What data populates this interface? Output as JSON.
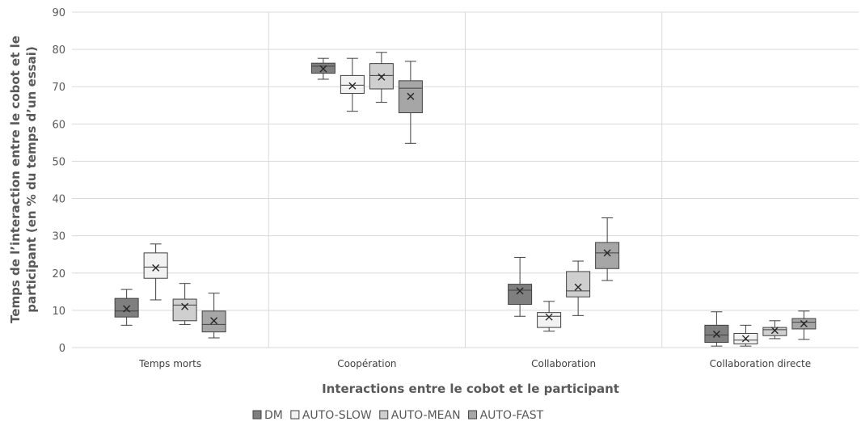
{
  "chart_data": {
    "type": "boxplot",
    "title": "",
    "xlabel": "Interactions entre le cobot et le participant",
    "ylabel_line1": "Temps de l’interaction entre le cobot et le",
    "ylabel_line2": "participant (en % du temps d’un essai)",
    "ylim": [
      0,
      90
    ],
    "yticks": [
      "0",
      "10",
      "20",
      "30",
      "40",
      "50",
      "60",
      "70",
      "80",
      "90"
    ],
    "grid": true,
    "legend_position": "bottom",
    "categories": [
      "Temps morts",
      "Coopération",
      "Collaboration",
      "Collaboration directe"
    ],
    "series": [
      {
        "name": "DM",
        "color": "#7f7f7f",
        "boxes": [
          {
            "min": 6,
            "q1": 8.2,
            "median": 9.8,
            "q3": 13.2,
            "max": 15.6,
            "mean": 10.4
          },
          {
            "min": 72,
            "q1": 73.6,
            "median": 75.5,
            "q3": 76.3,
            "max": 77.6,
            "mean": 74.8
          },
          {
            "min": 8.4,
            "q1": 11.6,
            "median": 15.4,
            "q3": 17,
            "max": 24.2,
            "mean": 15.2
          },
          {
            "min": 0.4,
            "q1": 1.4,
            "median": 3.4,
            "q3": 6,
            "max": 9.6,
            "mean": 3.6
          }
        ]
      },
      {
        "name": "AUTO-SLOW",
        "color": "#f2f2f2",
        "boxes": [
          {
            "min": 12.8,
            "q1": 18.6,
            "median": 21.6,
            "q3": 25.4,
            "max": 27.8,
            "mean": 21.4
          },
          {
            "min": 63.4,
            "q1": 68.2,
            "median": 70.4,
            "q3": 73,
            "max": 77.6,
            "mean": 70.2
          },
          {
            "min": 4.4,
            "q1": 5.4,
            "median": 8.4,
            "q3": 9.4,
            "max": 12.4,
            "mean": 8.2
          },
          {
            "min": 0.4,
            "q1": 1,
            "median": 2,
            "q3": 3.8,
            "max": 6,
            "mean": 2.4
          }
        ]
      },
      {
        "name": "AUTO-MEAN",
        "color": "#cfcfcf",
        "boxes": [
          {
            "min": 6.2,
            "q1": 7.2,
            "median": 11.4,
            "q3": 13,
            "max": 17.2,
            "mean": 11
          },
          {
            "min": 65.8,
            "q1": 69.4,
            "median": 73,
            "q3": 76.2,
            "max": 79.2,
            "mean": 72.6
          },
          {
            "min": 8.6,
            "q1": 13.6,
            "median": 15.2,
            "q3": 20.4,
            "max": 23.2,
            "mean": 16.2
          },
          {
            "min": 2.4,
            "q1": 3.2,
            "median": 4.8,
            "q3": 5.4,
            "max": 7.2,
            "mean": 4.6
          }
        ]
      },
      {
        "name": "AUTO-FAST",
        "color": "#a6a6a6",
        "boxes": [
          {
            "min": 2.6,
            "q1": 4.2,
            "median": 6.2,
            "q3": 9.8,
            "max": 14.6,
            "mean": 7.2
          },
          {
            "min": 54.8,
            "q1": 63,
            "median": 69.6,
            "q3": 71.6,
            "max": 76.8,
            "mean": 67.4
          },
          {
            "min": 18,
            "q1": 21.2,
            "median": 25.4,
            "q3": 28.2,
            "max": 34.8,
            "mean": 25.4
          },
          {
            "min": 2.2,
            "q1": 5,
            "median": 6.8,
            "q3": 7.8,
            "max": 9.8,
            "mean": 6.4
          }
        ]
      }
    ]
  }
}
